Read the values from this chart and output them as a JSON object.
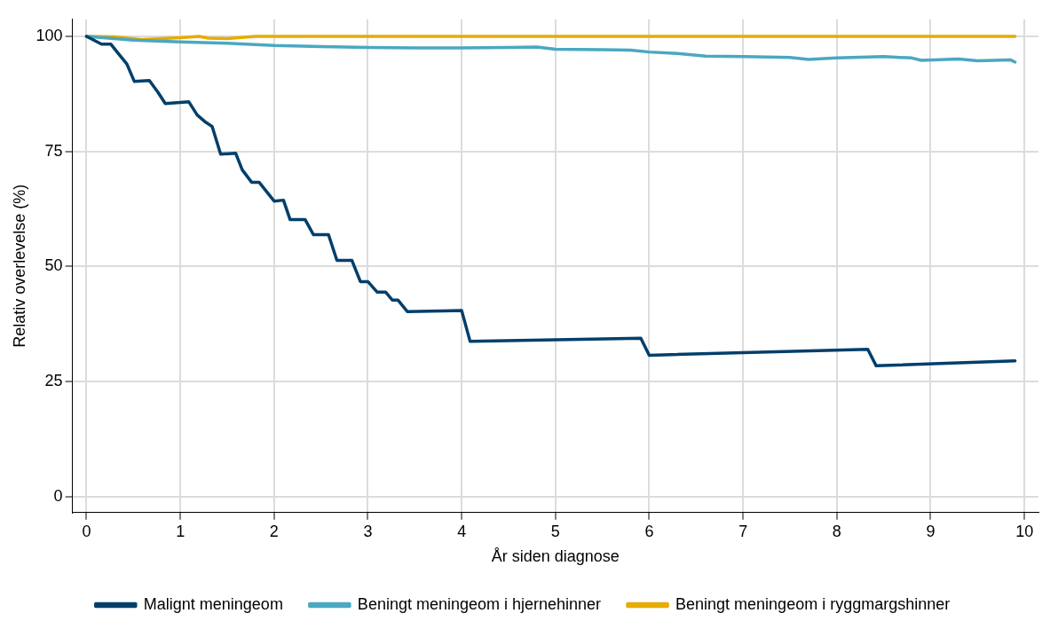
{
  "chart_data": {
    "type": "line",
    "xlabel": "År siden diagnose",
    "ylabel": "Relativ overlevelse (%)",
    "xlim": [
      -0.15,
      10.15
    ],
    "ylim": [
      -3.5,
      103.7
    ],
    "xticks": [
      0,
      1,
      2,
      3,
      4,
      5,
      6,
      7,
      8,
      9,
      10
    ],
    "yticks": [
      0,
      25,
      50,
      75,
      100
    ],
    "grid": true,
    "legend": "bottom",
    "marker": "none",
    "line_style": "solid",
    "series": [
      {
        "name": "Malignt meningeom",
        "color": "#003f6b",
        "x": [
          0,
          0.16,
          0.26,
          0.33,
          0.43,
          0.51,
          0.67,
          0.76,
          0.84,
          1.09,
          1.18,
          1.26,
          1.34,
          1.43,
          1.59,
          1.66,
          1.76,
          1.84,
          2.0,
          2.1,
          2.17,
          2.33,
          2.42,
          2.58,
          2.67,
          2.83,
          2.92,
          3.0,
          3.1,
          3.19,
          3.26,
          3.32,
          3.42,
          4.0,
          4.09,
          5.91,
          6.0,
          8.33,
          8.42,
          9.9
        ],
        "values": [
          100,
          98.3,
          98.3,
          96.5,
          94,
          90.2,
          90.4,
          87.9,
          85.4,
          85.8,
          82.9,
          81.5,
          80.4,
          74.4,
          74.6,
          71,
          68.3,
          68.3,
          64.2,
          64.4,
          60.2,
          60.2,
          56.9,
          56.9,
          51.3,
          51.3,
          46.7,
          46.7,
          44.4,
          44.4,
          42.7,
          42.7,
          40.2,
          40.4,
          33.7,
          34.4,
          30.7,
          32,
          28.4,
          29.5
        ]
      },
      {
        "name": "Beningt meningeom i hjernehinner",
        "color": "#4aa8c0",
        "x": [
          0,
          0.5,
          1,
          1.5,
          2,
          2.5,
          3,
          3.5,
          4,
          4.5,
          4.8,
          5,
          5.5,
          5.8,
          6,
          6.3,
          6.6,
          7,
          7.5,
          7.7,
          8,
          8.5,
          8.8,
          8.9,
          9.3,
          9.5,
          9.85,
          9.9
        ],
        "values": [
          100,
          99.2,
          98.8,
          98.5,
          98,
          97.8,
          97.6,
          97.5,
          97.5,
          97.6,
          97.7,
          97.2,
          97.1,
          97,
          96.6,
          96.3,
          95.7,
          95.6,
          95.4,
          95,
          95.3,
          95.6,
          95.3,
          94.8,
          95.1,
          94.7,
          94.9,
          94.4
        ]
      },
      {
        "name": "Beningt meningeom i ryggmargshinner",
        "color": "#e6ac00",
        "x": [
          0,
          0.3,
          0.6,
          1,
          1.2,
          1.3,
          1.5,
          1.8,
          9.9
        ],
        "values": [
          100,
          99.9,
          99.3,
          99.7,
          100,
          99.6,
          99.5,
          100,
          100
        ]
      }
    ]
  }
}
